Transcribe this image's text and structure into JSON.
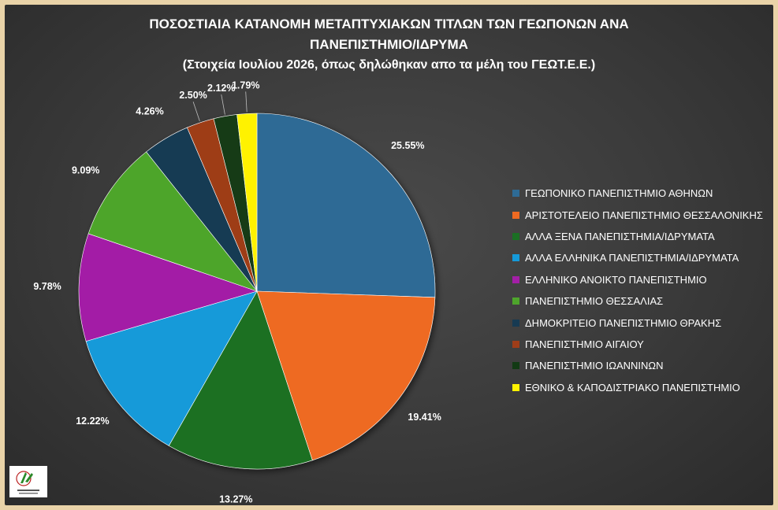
{
  "chart_data": {
    "type": "pie",
    "title": "ΠΟΣΟΣΤΙΑΙΑ ΚΑΤΑΝΟΜΗ ΜΕΤΑΠΤΥΧΙΑΚΩΝ ΤΙΤΛΩΝ ΤΩΝ ΓΕΩΠΟΝΩΝ ΑΝΑ",
    "title_line2": "ΠΑΝΕΠΙΣΤΗΜΙΟ/ΙΔΡΥΜΑ",
    "subtitle": "(Στοιχεία Ιουλίου 2026, όπως δηλώθηκαν απο τα μέλη του ΓΕΩΤ.Ε.Ε.)",
    "legend_position": "right",
    "slices": [
      {
        "name": "ΓΕΩΠΟΝΙΚΟ ΠΑΝΕΠΙΣΤΗΜΙΟ ΑΘΗΝΩΝ",
        "value": 25.55,
        "label": "25.55%",
        "color": "#2e6b95"
      },
      {
        "name": "ΑΡΙΣΤΟΤΕΛΕΙΟ ΠΑΝΕΠΙΣΤΗΜΙΟ ΘΕΣΣΑΛΟΝΙΚΗΣ",
        "value": 19.41,
        "label": "19.41%",
        "color": "#ee6a22"
      },
      {
        "name": "ΑΛΛΑ ΞΕΝΑ ΠΑΝΕΠΙΣΤΗΜΙΑ/ΙΔΡΥΜΑΤΑ",
        "value": 13.27,
        "label": "13.27%",
        "color": "#1b6f24"
      },
      {
        "name": "ΑΛΛΑ ΕΛΛΗΝΙΚΑ ΠΑΝΕΠΙΣΤΗΜΙΑ/ΙΔΡΥΜΑΤΑ",
        "value": 12.22,
        "label": "12.22%",
        "color": "#159ad9"
      },
      {
        "name": "ΕΛΛΗΝΙΚΟ ΑΝΟΙΚΤΟ ΠΑΝΕΠΙΣΤΗΜΙΟ",
        "value": 9.78,
        "label": "9.78%",
        "color": "#a31fa6"
      },
      {
        "name": "ΠΑΝΕΠΙΣΤΗΜΙΟ ΘΕΣΣΑΛΙΑΣ",
        "value": 9.09,
        "label": "9.09%",
        "color": "#4ea52c"
      },
      {
        "name": "ΔΗΜΟΚΡΙΤΕΙΟ ΠΑΝΕΠΙΣΤΗΜΙΟ ΘΡΑΚΗΣ",
        "value": 4.26,
        "label": "4.26%",
        "color": "#173a52"
      },
      {
        "name": "ΠΑΝΕΠΙΣΤΗΜΙΟ ΑΙΓΑΙΟΥ",
        "value": 2.5,
        "label": "2.50%",
        "color": "#9e3d19"
      },
      {
        "name": "ΠΑΝΕΠΙΣΤΗΜΙΟ ΙΩΑΝΝΙΝΩΝ",
        "value": 2.12,
        "label": "2.12%",
        "color": "#123a14"
      },
      {
        "name": "ΕΘΝΙΚΟ & ΚΑΠΟΔΙΣΤΡΙΑΚΟ ΠΑΝΕΠΙΣΤΗΜΙΟ",
        "value": 1.79,
        "label": "1.79%",
        "color": "#fff200"
      }
    ]
  },
  "logo": {
    "icon": "geotee-logo-icon"
  }
}
